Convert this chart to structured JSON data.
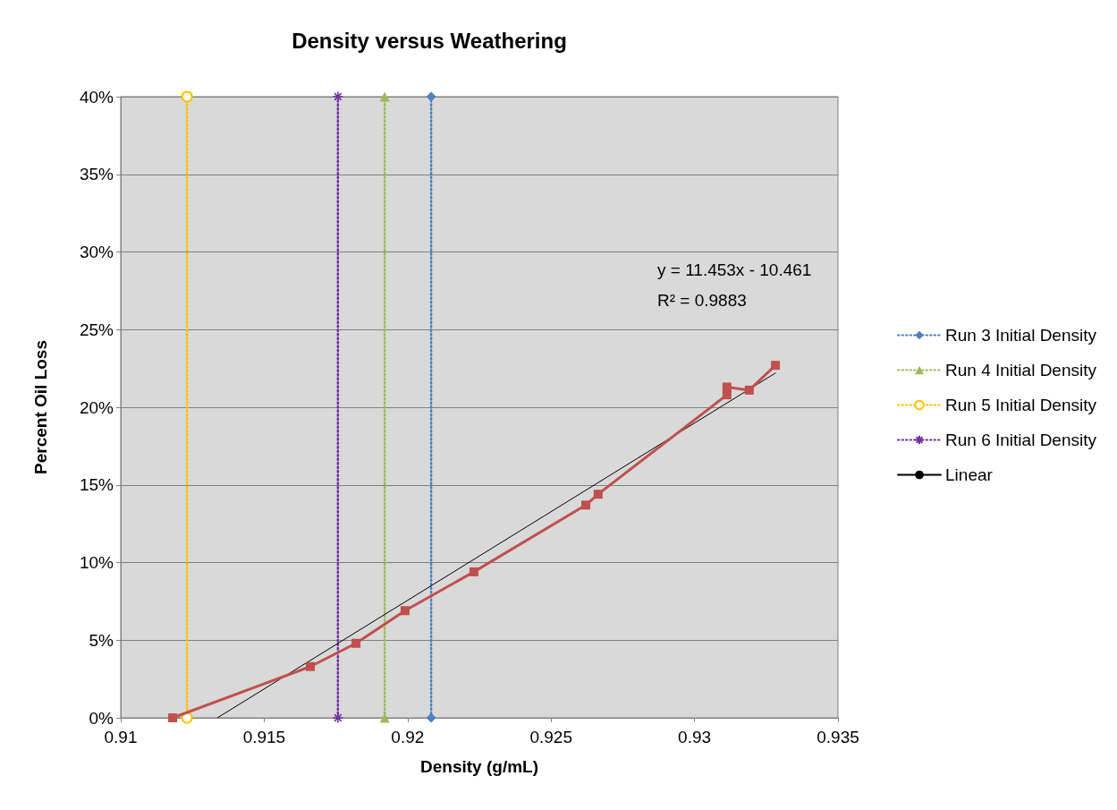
{
  "chart_data": {
    "type": "line",
    "title": "Density versus Weathering",
    "xlabel": "Density (g/mL)",
    "ylabel": "Percent Oil Loss",
    "xlim": [
      0.91,
      0.935
    ],
    "xticks": [
      0.91,
      0.915,
      0.92,
      0.925,
      0.93,
      0.935
    ],
    "ylim": [
      0,
      40
    ],
    "yticks": [
      {
        "value": 0,
        "label": "0%"
      },
      {
        "value": 5,
        "label": "5%"
      },
      {
        "value": 10,
        "label": "10%"
      },
      {
        "value": 15,
        "label": "15%"
      },
      {
        "value": 20,
        "label": "20%"
      },
      {
        "value": 25,
        "label": "25%"
      },
      {
        "value": 30,
        "label": "30%"
      },
      {
        "value": 35,
        "label": "35%"
      },
      {
        "value": 40,
        "label": "40%"
      }
    ],
    "grid": "y",
    "legend": "right",
    "annotations": [
      "y = 11.453x - 10.461",
      "R² = 0.9883"
    ],
    "series": [
      {
        "color": "#c0504d",
        "marker": "square",
        "line_style": "solid",
        "x": [
          0.91181,
          0.91661,
          0.9182,
          0.91991,
          0.92231,
          0.92621,
          0.92664,
          0.93113,
          0.93113,
          0.93191,
          0.93282
        ],
        "values": [
          0,
          3.3,
          4.8,
          6.9,
          9.4,
          13.7,
          14.4,
          20.8,
          21.3,
          21.1,
          22.7
        ]
      },
      {
        "name": "Run 3 Initial Density",
        "color": "#4f81bd",
        "marker": "diamond",
        "line_style": "dotted",
        "x": [
          0.92082,
          0.92082
        ],
        "values": [
          0,
          40
        ]
      },
      {
        "name": "Run 4 Initial Density",
        "color": "#9bbb59",
        "marker": "triangle",
        "line_style": "dotted",
        "x": [
          0.9192,
          0.9192
        ],
        "values": [
          0,
          40
        ]
      },
      {
        "name": "Run 5 Initial Density",
        "color": "#ffc000",
        "marker": "circle",
        "line_style": "dotted",
        "x": [
          0.91231,
          0.91231
        ],
        "values": [
          0,
          40
        ]
      },
      {
        "name": "Run 6 Initial Density",
        "color": "#7030a0",
        "marker": "cross",
        "line_style": "dotted",
        "x": [
          0.91757,
          0.91757
        ],
        "values": [
          0,
          40
        ]
      },
      {
        "name": "Linear",
        "color": "#000000",
        "marker": "none",
        "line_style": "solid",
        "x": [
          0.91337,
          0.93282
        ],
        "values": [
          0,
          22.2
        ]
      }
    ]
  }
}
